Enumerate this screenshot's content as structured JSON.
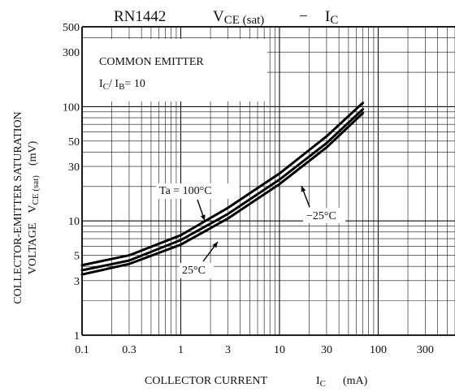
{
  "chart_data": {
    "type": "line",
    "title": {
      "part_number": "RN1442",
      "v_main": "V",
      "v_sub": "CE (sat)",
      "dash": "−",
      "i_main": "I",
      "i_sub": "C"
    },
    "xlabel": {
      "text": "COLLECTOR CURRENT",
      "sym_main": "I",
      "sym_sub": "C",
      "unit": "(mA)"
    },
    "ylabel": {
      "line1": "COLLECTOR-EMITTER SATURATION",
      "line2_prefix": "VOLTAGE",
      "sym_main": "V",
      "sym_sub": "CE (sat)",
      "unit": "(mV)"
    },
    "x_scale": "log",
    "y_scale": "log",
    "xlim": [
      0.1,
      600
    ],
    "ylim": [
      1,
      500
    ],
    "xticks": [
      {
        "value": 0.1,
        "label": "0.1"
      },
      {
        "value": 0.3,
        "label": "0.3"
      },
      {
        "value": 1,
        "label": "1"
      },
      {
        "value": 3,
        "label": "3"
      },
      {
        "value": 10,
        "label": "10"
      },
      {
        "value": 30,
        "label": "30"
      },
      {
        "value": 100,
        "label": "100"
      },
      {
        "value": 300,
        "label": "300"
      }
    ],
    "yticks": [
      {
        "value": 1,
        "label": "1"
      },
      {
        "value": 3,
        "label": "3"
      },
      {
        "value": 5,
        "label": "5"
      },
      {
        "value": 10,
        "label": "10"
      },
      {
        "value": 30,
        "label": "30"
      },
      {
        "value": 50,
        "label": "50"
      },
      {
        "value": 100,
        "label": "100"
      },
      {
        "value": 300,
        "label": "300"
      },
      {
        "value": 500,
        "label": "500"
      }
    ],
    "grid": true,
    "legend_box": {
      "line1": "COMMON EMITTER",
      "line2_a": "I",
      "line2_a_sub": "C",
      "line2_sep": "/ I",
      "line2_b_sub": "B",
      "line2_end": "= 10"
    },
    "series": [
      {
        "name": "Ta = 100°C",
        "x": [
          0.1,
          0.3,
          1,
          3,
          10,
          30,
          70
        ],
        "y": [
          4.1,
          5.0,
          7.5,
          13,
          26,
          55,
          108
        ]
      },
      {
        "name": "−25°C",
        "x": [
          0.1,
          0.3,
          1,
          3,
          10,
          30,
          70
        ],
        "y": [
          3.7,
          4.5,
          6.8,
          11.5,
          23,
          48,
          95
        ]
      },
      {
        "name": "25°C",
        "x": [
          0.1,
          0.3,
          1,
          3,
          10,
          30,
          70
        ],
        "y": [
          3.4,
          4.2,
          6.2,
          10.5,
          21,
          44,
          88
        ]
      }
    ],
    "annotations": [
      {
        "text": "Ta = 100°C",
        "series": 0
      },
      {
        "text": "−25°C",
        "series": 1
      },
      {
        "text": "25°C",
        "series": 2
      }
    ]
  }
}
